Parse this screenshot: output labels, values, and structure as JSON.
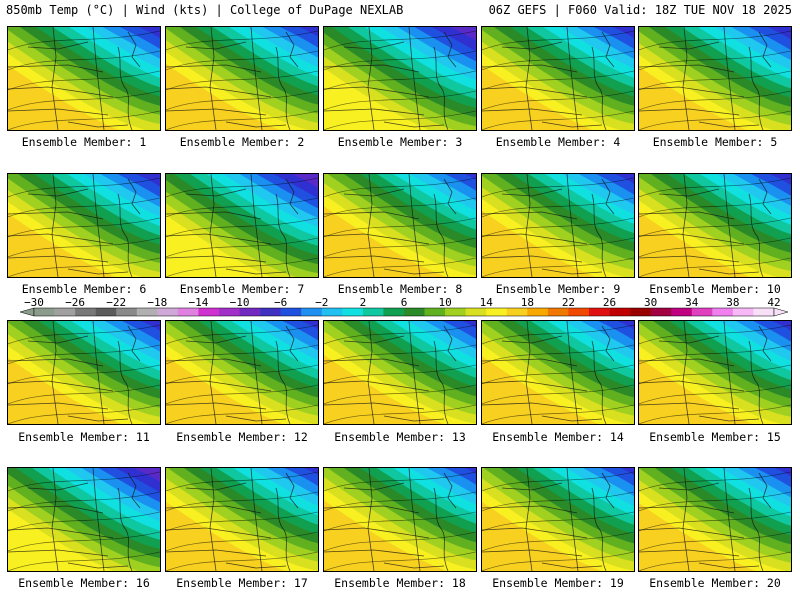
{
  "header": {
    "left": "850mb Temp (°C) | Wind (kts) | College of DuPage NEXLAB",
    "right": "06Z GEFS | F060 Valid: 18Z TUE NOV 18 2025"
  },
  "panel_label_prefix": "Ensemble Member:",
  "members": [
    {
      "id": 1,
      "label": "Ensemble Member: 1",
      "warmth": 0.55
    },
    {
      "id": 2,
      "label": "Ensemble Member: 2",
      "warmth": 0.6
    },
    {
      "id": 3,
      "label": "Ensemble Member: 3",
      "warmth": 0.45
    },
    {
      "id": 4,
      "label": "Ensemble Member: 4",
      "warmth": 0.55
    },
    {
      "id": 5,
      "label": "Ensemble Member: 5",
      "warmth": 0.5
    },
    {
      "id": 6,
      "label": "Ensemble Member: 6",
      "warmth": 0.5
    },
    {
      "id": 7,
      "label": "Ensemble Member: 7",
      "warmth": 0.45
    },
    {
      "id": 8,
      "label": "Ensemble Member: 8",
      "warmth": 0.75
    },
    {
      "id": 9,
      "label": "Ensemble Member: 9",
      "warmth": 0.6
    },
    {
      "id": 10,
      "label": "Ensemble Member: 10",
      "warmth": 0.55
    },
    {
      "id": 11,
      "label": "Ensemble Member: 11",
      "warmth": 0.6
    },
    {
      "id": 12,
      "label": "Ensemble Member: 12",
      "warmth": 0.65
    },
    {
      "id": 13,
      "label": "Ensemble Member: 13",
      "warmth": 0.7
    },
    {
      "id": 14,
      "label": "Ensemble Member: 14",
      "warmth": 0.65
    },
    {
      "id": 15,
      "label": "Ensemble Member: 15",
      "warmth": 0.6
    },
    {
      "id": 16,
      "label": "Ensemble Member: 16",
      "warmth": 0.45
    },
    {
      "id": 17,
      "label": "Ensemble Member: 17",
      "warmth": 0.7
    },
    {
      "id": 18,
      "label": "Ensemble Member: 18",
      "warmth": 0.75
    },
    {
      "id": 19,
      "label": "Ensemble Member: 19",
      "warmth": 0.7
    },
    {
      "id": 20,
      "label": "Ensemble Member: 20",
      "warmth": 0.65
    }
  ],
  "colorbar": {
    "labels": [
      "−30",
      "−26",
      "−22",
      "−18",
      "−14",
      "−10",
      "−6",
      "−2",
      "2",
      "6",
      "10",
      "14",
      "18",
      "22",
      "26",
      "30",
      "34",
      "38",
      "42"
    ],
    "colors": [
      "#8c9c8c",
      "#a0a0a0",
      "#787878",
      "#5c5c5c",
      "#8a8a8a",
      "#b0b0b0",
      "#d0a8d8",
      "#e080e0",
      "#d030d0",
      "#a030c8",
      "#7028c0",
      "#4030c0",
      "#2050e0",
      "#2090f0",
      "#20c0f0",
      "#10e0e0",
      "#10c8a0",
      "#10a050",
      "#2a8a28",
      "#60b020",
      "#a0d020",
      "#d8e020",
      "#f8f020",
      "#f8d020",
      "#f8a800",
      "#f07800",
      "#f04800",
      "#e01010",
      "#c00000",
      "#980000",
      "#a00040",
      "#c00080",
      "#e040c0",
      "#f080f0",
      "#f8b8f8",
      "#f8e0f8"
    ],
    "scale_low": -30,
    "scale_high": 42
  },
  "map_colors": [
    "#5a2ac8",
    "#3030d0",
    "#2050e0",
    "#1a90f0",
    "#20c8f0",
    "#10e0e0",
    "#10c8a0",
    "#10a050",
    "#2a8a28",
    "#60b020",
    "#a0d020",
    "#d8e020",
    "#f8f020",
    "#f8d020",
    "#f8a800"
  ]
}
